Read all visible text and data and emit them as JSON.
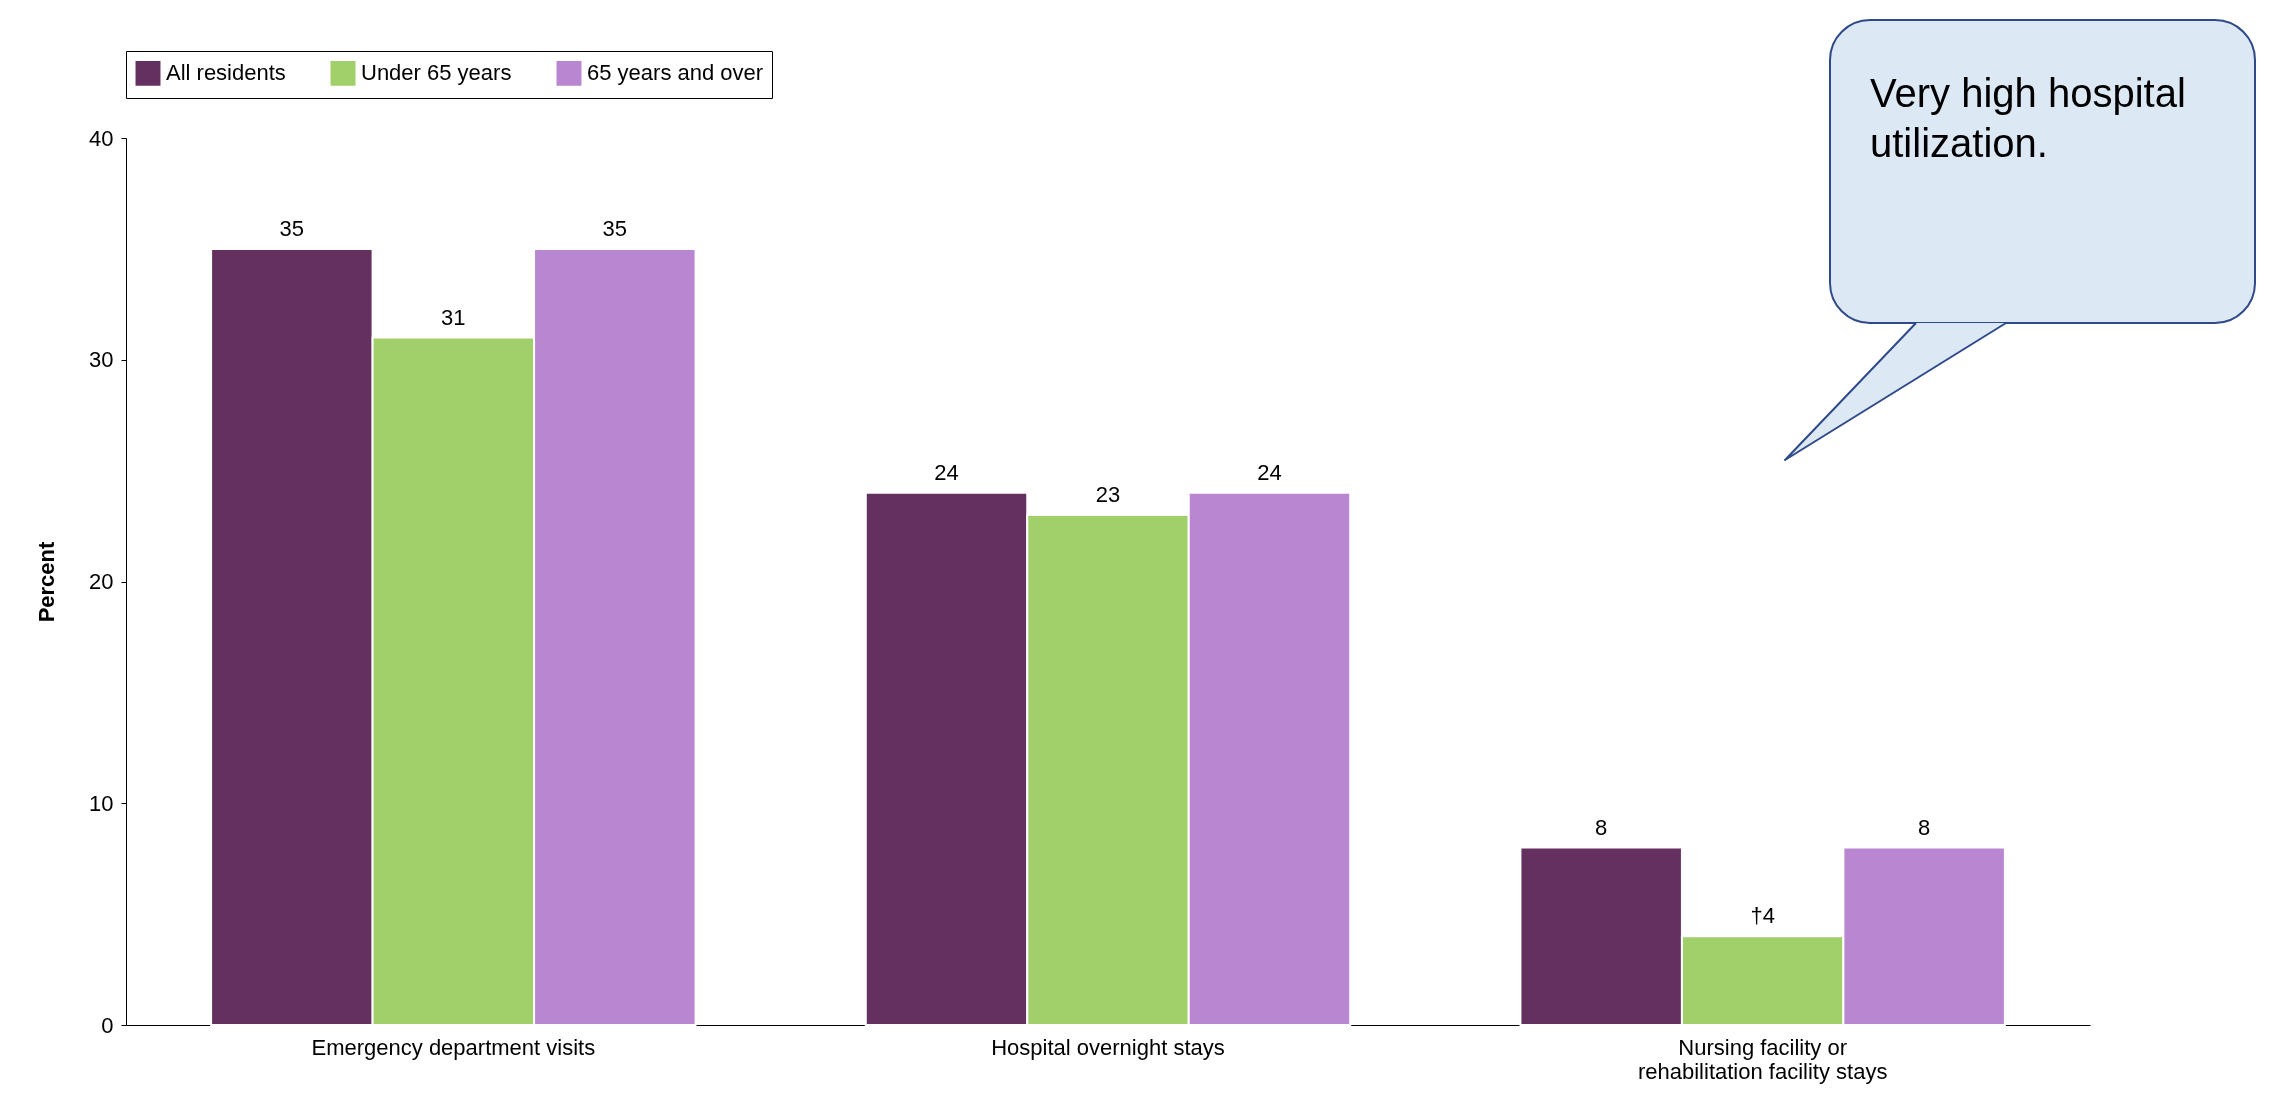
{
  "chart_data": {
    "type": "bar",
    "categories": [
      "Emergency department visits",
      "Hospital overnight stays",
      "Nursing facility or rehabilitation facility stays"
    ],
    "series": [
      {
        "name": "All residents",
        "color": "#64305f",
        "values": [
          35,
          24,
          8
        ],
        "value_labels": [
          "35",
          "24",
          "8"
        ]
      },
      {
        "name": "Under 65 years",
        "color": "#a1cf6a",
        "values": [
          31,
          23,
          4
        ],
        "value_labels": [
          "31",
          "23",
          "†4"
        ]
      },
      {
        "name": "65 years and over",
        "color": "#b986d1",
        "values": [
          35,
          24,
          8
        ],
        "value_labels": [
          "35",
          "24",
          "8"
        ]
      }
    ],
    "ylabel": "Percent",
    "ylim": [
      0,
      40
    ],
    "yticks": [
      0,
      10,
      20,
      30,
      40
    ],
    "grid": false,
    "legend": "top",
    "annotations": [
      "Very high hospital utilization."
    ]
  }
}
